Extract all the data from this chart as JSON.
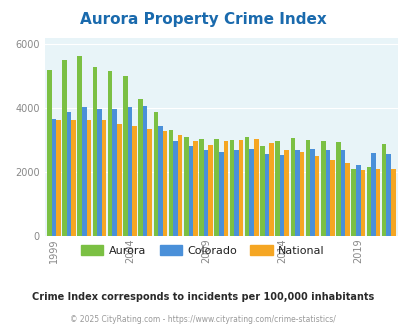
{
  "title": "Aurora Property Crime Index",
  "years": [
    1999,
    2000,
    2001,
    2002,
    2003,
    2004,
    2005,
    2006,
    2007,
    2008,
    2009,
    2010,
    2011,
    2012,
    2013,
    2014,
    2015,
    2016,
    2017,
    2018,
    2019,
    2020,
    2021
  ],
  "aurora": [
    5200,
    5520,
    5620,
    5280,
    5150,
    5000,
    4280,
    3880,
    3330,
    3100,
    3050,
    3040,
    3020,
    3100,
    2820,
    2960,
    3060,
    3010,
    2980,
    2940,
    2090,
    2150,
    2880
  ],
  "colorado": [
    3650,
    3880,
    4050,
    3980,
    3960,
    4050,
    4060,
    3430,
    2960,
    2820,
    2700,
    2640,
    2700,
    2710,
    2570,
    2540,
    2700,
    2720,
    2700,
    2680,
    2210,
    2610,
    2580
  ],
  "national": [
    3640,
    3640,
    3640,
    3630,
    3500,
    3450,
    3360,
    3300,
    3160,
    2980,
    2850,
    2960,
    3000,
    3050,
    2900,
    2700,
    2620,
    2490,
    2370,
    2290,
    2070,
    2100,
    2100
  ],
  "aurora_color": "#7bc043",
  "colorado_color": "#4a90d9",
  "national_color": "#f5a623",
  "bg_color": "#e8f4f8",
  "ylim": [
    0,
    6200
  ],
  "yticks": [
    0,
    2000,
    4000,
    6000
  ],
  "title_color": "#1a6aad",
  "subtitle": "Crime Index corresponds to incidents per 100,000 inhabitants",
  "footer": "© 2025 CityRating.com - https://www.cityrating.com/crime-statistics/",
  "subtitle_color": "#2a2a2a",
  "footer_color": "#999999",
  "tick_years": [
    1999,
    2004,
    2009,
    2014,
    2019
  ]
}
